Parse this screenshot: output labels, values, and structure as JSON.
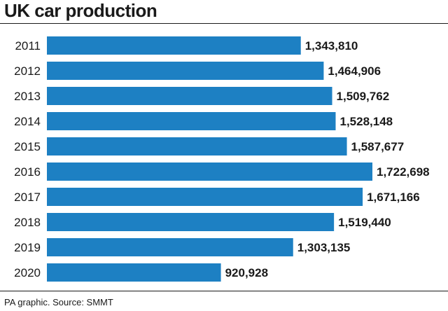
{
  "title": "UK car production",
  "source": "PA graphic. Source: SMMT",
  "colors": {
    "bar": "#1d80c3",
    "text": "#1a1a1a"
  },
  "chart_data": {
    "type": "bar",
    "orientation": "horizontal",
    "title": "UK car production",
    "categories": [
      "2011",
      "2012",
      "2013",
      "2014",
      "2015",
      "2016",
      "2017",
      "2018",
      "2019",
      "2020"
    ],
    "values": [
      1343810,
      1464906,
      1509762,
      1528148,
      1587677,
      1722698,
      1671166,
      1519440,
      1303135,
      920928
    ],
    "value_labels": [
      "1,343,810",
      "1,464,906",
      "1,509,762",
      "1,528,148",
      "1,587,677",
      "1,722,698",
      "1,671,166",
      "1,519,440",
      "1,303,135",
      "920,928"
    ],
    "xlabel": "",
    "ylabel": "",
    "grid": false,
    "legend": "none"
  }
}
